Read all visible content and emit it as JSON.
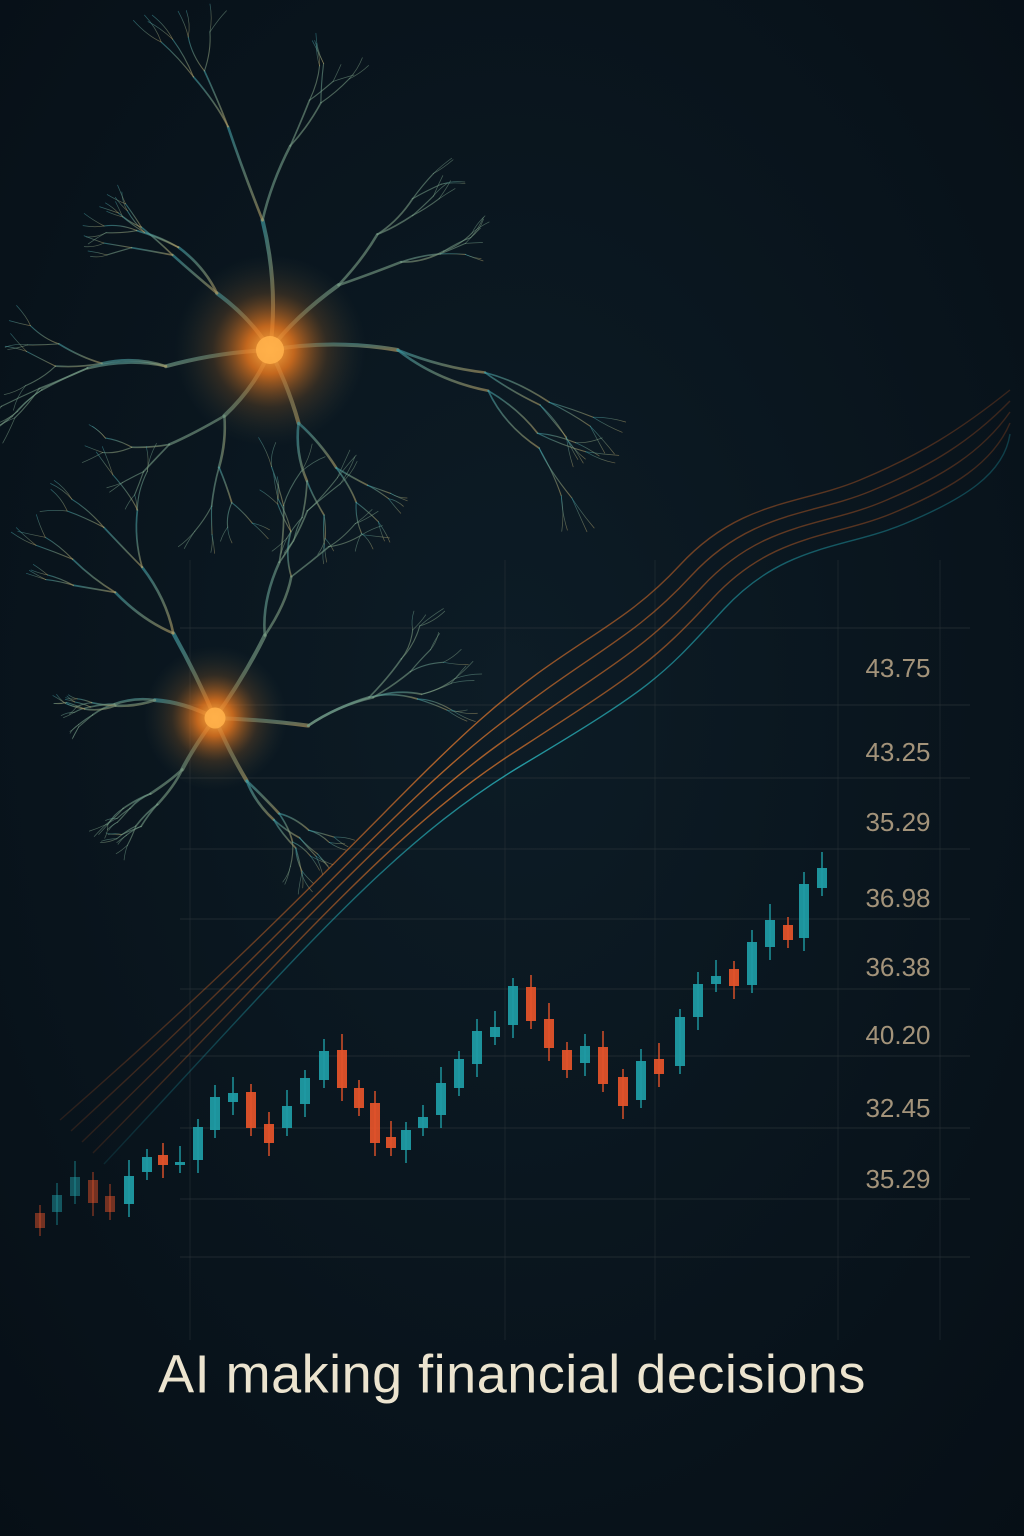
{
  "price_labels": [
    "43.75",
    "43.25",
    "35.29",
    "36.98",
    "36.38",
    "40.20",
    "32.45",
    "35.29"
  ],
  "caption": "AI making financial decisions"
}
